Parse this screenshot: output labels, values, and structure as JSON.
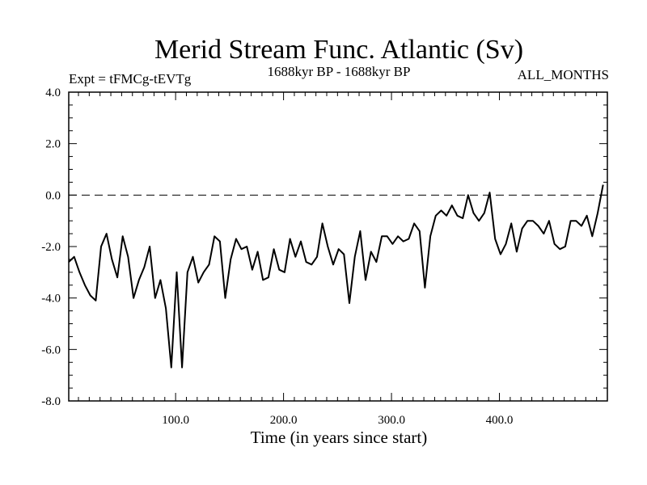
{
  "chart_data": {
    "type": "line",
    "title": "Merid Stream Func. Atlantic (Sv)",
    "subtitle_left": "Expt = tFMCg-tEVTg",
    "subtitle_center": "1688kyr BP - 1688kyr BP",
    "subtitle_right": "ALL_MONTHS",
    "xlabel": "Time (in years since start)",
    "ylabel": "",
    "xlim": [
      1,
      500
    ],
    "ylim": [
      -8,
      4
    ],
    "x_ticks": [
      100,
      200,
      300,
      400
    ],
    "x_tick_labels": [
      "100.0",
      "200.0",
      "300.0",
      "400.0"
    ],
    "y_ticks": [
      -8,
      -6,
      -4,
      -2,
      0,
      2,
      4
    ],
    "y_tick_labels": [
      "-8.0",
      "-6.0",
      "-4.0",
      "-2.0",
      "0.0",
      "2.0",
      "4.0"
    ],
    "zero_line": "dashed",
    "series": [
      {
        "name": "Merid Stream Func. Atlantic",
        "x_start": 1,
        "x_step": 5,
        "values": [
          -2.6,
          -2.4,
          -3.0,
          -3.5,
          -3.9,
          -4.1,
          -2.0,
          -1.5,
          -2.5,
          -3.2,
          -1.6,
          -2.4,
          -4.0,
          -3.3,
          -2.8,
          -2.0,
          -4.0,
          -3.3,
          -4.4,
          -6.7,
          -3.0,
          -6.7,
          -3.0,
          -2.4,
          -3.4,
          -3.0,
          -2.7,
          -1.6,
          -1.8,
          -4.0,
          -2.5,
          -1.7,
          -2.1,
          -2.0,
          -2.9,
          -2.2,
          -3.3,
          -3.2,
          -2.1,
          -2.9,
          -3.0,
          -1.7,
          -2.4,
          -1.8,
          -2.6,
          -2.7,
          -2.4,
          -1.1,
          -2.0,
          -2.7,
          -2.1,
          -2.3,
          -4.2,
          -2.4,
          -1.4,
          -3.3,
          -2.2,
          -2.6,
          -1.6,
          -1.6,
          -1.9,
          -1.6,
          -1.8,
          -1.7,
          -1.1,
          -1.4,
          -3.6,
          -1.6,
          -0.8,
          -0.6,
          -0.8,
          -0.4,
          -0.8,
          -0.9,
          0.0,
          -0.7,
          -1.0,
          -0.7,
          0.1,
          -1.7,
          -2.3,
          -1.9,
          -1.1,
          -2.2,
          -1.3,
          -1.0,
          -1.0,
          -1.2,
          -1.5,
          -1.0,
          -1.9,
          -2.1,
          -2.0,
          -1.0,
          -1.0,
          -1.2,
          -0.8,
          -1.6,
          -0.7,
          0.4
        ]
      }
    ]
  }
}
